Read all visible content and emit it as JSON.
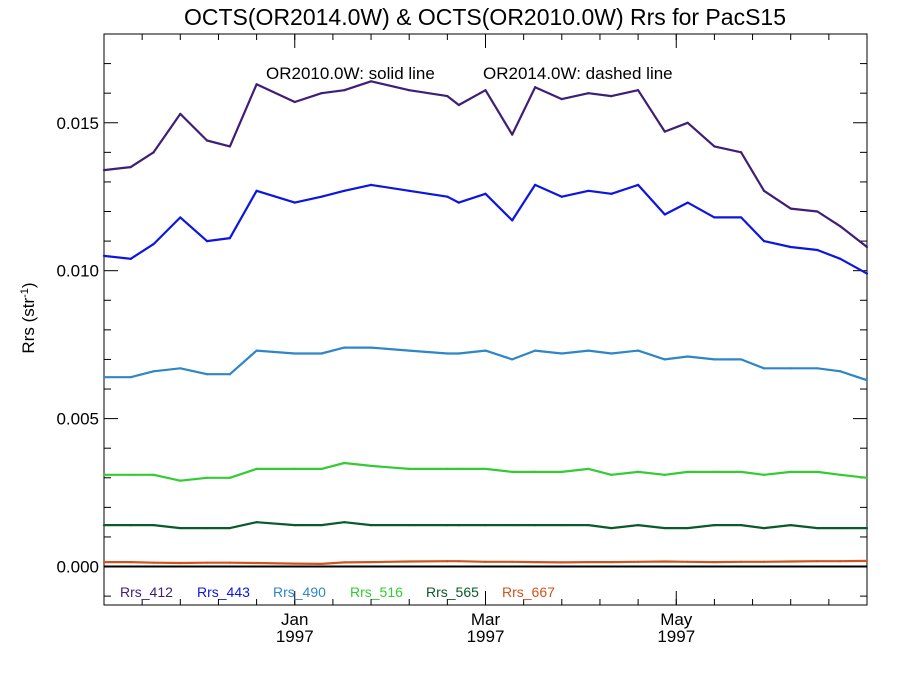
{
  "chart_data": {
    "type": "line",
    "title": "OCTS(OR2014.0W) & OCTS(OR2010.0W)  Rrs for PacS15",
    "annotation_left": "OR2010.0W: solid line",
    "annotation_right": "OR2014.0W: dashed line",
    "ylabel_main": "Rrs (str",
    "ylabel_sup": "-1",
    "ylabel_close": ")",
    "xlim": [
      0,
      20
    ],
    "ylim": [
      -0.0013,
      0.018
    ],
    "y_ticks": [
      0.0,
      0.005,
      0.01,
      0.015
    ],
    "y_tick_labels": [
      "0.000",
      "0.005",
      "0.010",
      "0.015"
    ],
    "x_tick_labels": [
      {
        "month": "Jan",
        "year": "1997",
        "at": 5
      },
      {
        "month": "Mar",
        "year": "1997",
        "at": 10
      },
      {
        "month": "May",
        "year": "1997",
        "at": 15
      }
    ],
    "zero_line": true,
    "legend_placement": "bottom-left",
    "x": [
      0,
      0.7,
      1.3,
      2,
      2.7,
      3.3,
      4,
      5,
      5.7,
      6.3,
      7,
      8,
      9,
      9.3,
      10,
      10.7,
      11.3,
      12,
      12.7,
      13.3,
      14,
      14.7,
      15.3,
      16,
      16.7,
      17.3,
      18,
      18.7,
      19.3,
      20
    ],
    "series": [
      {
        "name": "Rrs_412",
        "color": "#3f1e78",
        "values": [
          0.0134,
          0.0135,
          0.014,
          0.0153,
          0.0144,
          0.0142,
          0.0163,
          0.0157,
          0.016,
          0.0161,
          0.0164,
          0.0161,
          0.0159,
          0.0156,
          0.0161,
          0.0146,
          0.0162,
          0.0158,
          0.016,
          0.0159,
          0.0161,
          0.0147,
          0.015,
          0.0142,
          0.014,
          0.0127,
          0.0121,
          0.012,
          0.0115,
          0.0108
        ]
      },
      {
        "name": "Rrs_443",
        "color": "#0c16e0",
        "values": [
          0.0105,
          0.0104,
          0.0109,
          0.0118,
          0.011,
          0.0111,
          0.0127,
          0.0123,
          0.0125,
          0.0127,
          0.0129,
          0.0127,
          0.0125,
          0.0123,
          0.0126,
          0.0117,
          0.0129,
          0.0125,
          0.0127,
          0.0126,
          0.0129,
          0.0119,
          0.0123,
          0.0118,
          0.0118,
          0.011,
          0.0108,
          0.0107,
          0.0104,
          0.0099
        ]
      },
      {
        "name": "Rrs_490",
        "color": "#2f86c6",
        "values": [
          0.0064,
          0.0064,
          0.0066,
          0.0067,
          0.0065,
          0.0065,
          0.0073,
          0.0072,
          0.0072,
          0.0074,
          0.0074,
          0.0073,
          0.0072,
          0.0072,
          0.0073,
          0.007,
          0.0073,
          0.0072,
          0.0073,
          0.0072,
          0.0073,
          0.007,
          0.0071,
          0.007,
          0.007,
          0.0067,
          0.0067,
          0.0067,
          0.0066,
          0.0063
        ]
      },
      {
        "name": "Rrs_516",
        "color": "#33cc33",
        "values": [
          0.0031,
          0.0031,
          0.0031,
          0.0029,
          0.003,
          0.003,
          0.0033,
          0.0033,
          0.0033,
          0.0035,
          0.0034,
          0.0033,
          0.0033,
          0.0033,
          0.0033,
          0.0032,
          0.0032,
          0.0032,
          0.0033,
          0.0031,
          0.0032,
          0.0031,
          0.0032,
          0.0032,
          0.0032,
          0.0031,
          0.0032,
          0.0032,
          0.0031,
          0.003
        ]
      },
      {
        "name": "Rrs_565",
        "color": "#0a5a2a",
        "values": [
          0.0014,
          0.0014,
          0.0014,
          0.0013,
          0.0013,
          0.0013,
          0.0015,
          0.0014,
          0.0014,
          0.0015,
          0.0014,
          0.0014,
          0.0014,
          0.0014,
          0.0014,
          0.0014,
          0.0014,
          0.0014,
          0.0014,
          0.0013,
          0.0014,
          0.0013,
          0.0013,
          0.0014,
          0.0014,
          0.0013,
          0.0014,
          0.0013,
          0.0013,
          0.0013
        ]
      },
      {
        "name": "Rrs_667",
        "color": "#d2541c",
        "values": [
          0.00015,
          0.00015,
          0.00013,
          0.00012,
          0.00013,
          0.00013,
          0.00012,
          0.0001,
          9e-05,
          0.00014,
          0.00015,
          0.00017,
          0.00018,
          0.00018,
          0.00016,
          0.00016,
          0.00015,
          0.00014,
          0.00015,
          0.00015,
          0.00016,
          0.00017,
          0.00016,
          0.00015,
          0.00016,
          0.00016,
          0.00017,
          0.00018,
          0.00018,
          0.00019
        ]
      }
    ]
  }
}
